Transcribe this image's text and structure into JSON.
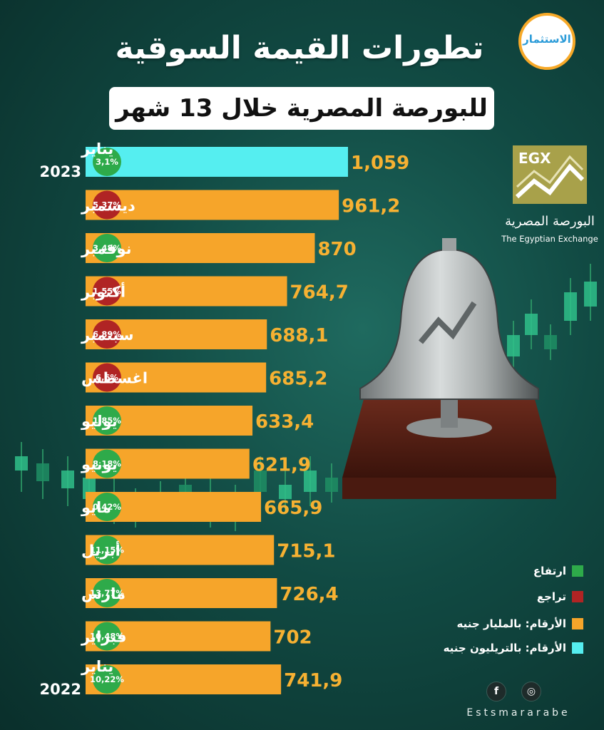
{
  "title": "تطورات القيمة السوقية",
  "subtitle": "للبورصة المصرية خلال 13 شهر",
  "brand_logo_text": "الاستثمار",
  "egx": {
    "logo_letters": "EGX",
    "name_ar": "البورصة المصرية",
    "name_en": "The Egyptian Exchange"
  },
  "legend": [
    {
      "label": "ارتفاع",
      "color": "#2eaa4a"
    },
    {
      "label": "تراجع",
      "color": "#b02424"
    },
    {
      "label": "الأرقام: بالمليار جنيه",
      "color": "#f6a52a"
    },
    {
      "label": "الأرقام: بالتريليون جنيه",
      "color": "#55eef0"
    }
  ],
  "social": {
    "facebook": "f",
    "dribbble": "◎",
    "handle": "Estsmararabe"
  },
  "colors": {
    "up": "#2eaa4a",
    "down": "#b02424",
    "bar_billion": "#f6a52a",
    "bar_trillion": "#55eef0",
    "value_text": "#f6b132"
  },
  "chart_data": {
    "type": "bar",
    "orientation": "horizontal",
    "title": "تطورات القيمة السوقية",
    "subtitle": "للبورصة المصرية خلال 13 شهر",
    "rows": [
      {
        "month": "يناير",
        "year": "2023",
        "value": 1059,
        "value_label": "1,059",
        "change": "3,1%",
        "direction": "up",
        "unit": "trillion"
      },
      {
        "month": "ديسمبر",
        "year": "",
        "value": 961.2,
        "value_label": "961,2",
        "change": "5,37%",
        "direction": "down",
        "unit": "billion"
      },
      {
        "month": "نوفمبر",
        "year": "",
        "value": 870,
        "value_label": "870",
        "change": "3,48%",
        "direction": "up",
        "unit": "billion"
      },
      {
        "month": "أكتوبر",
        "year": "",
        "value": 764.7,
        "value_label": "764,7",
        "change": "1,55%",
        "direction": "down",
        "unit": "billion"
      },
      {
        "month": "سبتمبر",
        "year": "",
        "value": 688.1,
        "value_label": "688,1",
        "change": "6,89%",
        "direction": "down",
        "unit": "billion"
      },
      {
        "month": "اغسطس",
        "year": "",
        "value": 685.2,
        "value_label": "685,2",
        "change": "6,6%",
        "direction": "down",
        "unit": "billion"
      },
      {
        "month": "يوليو",
        "year": "",
        "value": 633.4,
        "value_label": "633,4",
        "change": "1,85%",
        "direction": "up",
        "unit": "billion"
      },
      {
        "month": "يونيو",
        "year": "",
        "value": 621.9,
        "value_label": "621,9",
        "change": "8,18%",
        "direction": "up",
        "unit": "billion"
      },
      {
        "month": "مايو",
        "year": "",
        "value": 665.9,
        "value_label": "665,9",
        "change": "0,42%",
        "direction": "up",
        "unit": "billion"
      },
      {
        "month": "أبريل",
        "year": "",
        "value": 715.1,
        "value_label": "715,1",
        "change": "11,15%",
        "direction": "up",
        "unit": "billion"
      },
      {
        "month": "مارس",
        "year": "",
        "value": 726.4,
        "value_label": "726,4",
        "change": "13,77%",
        "direction": "up",
        "unit": "billion"
      },
      {
        "month": "فبراير",
        "year": "",
        "value": 702,
        "value_label": "702",
        "change": "10,48%",
        "direction": "up",
        "unit": "billion"
      },
      {
        "month": "يناير",
        "year": "2022",
        "value": 741.9,
        "value_label": "741,9",
        "change": "10,22%",
        "direction": "up",
        "unit": "billion"
      }
    ]
  }
}
